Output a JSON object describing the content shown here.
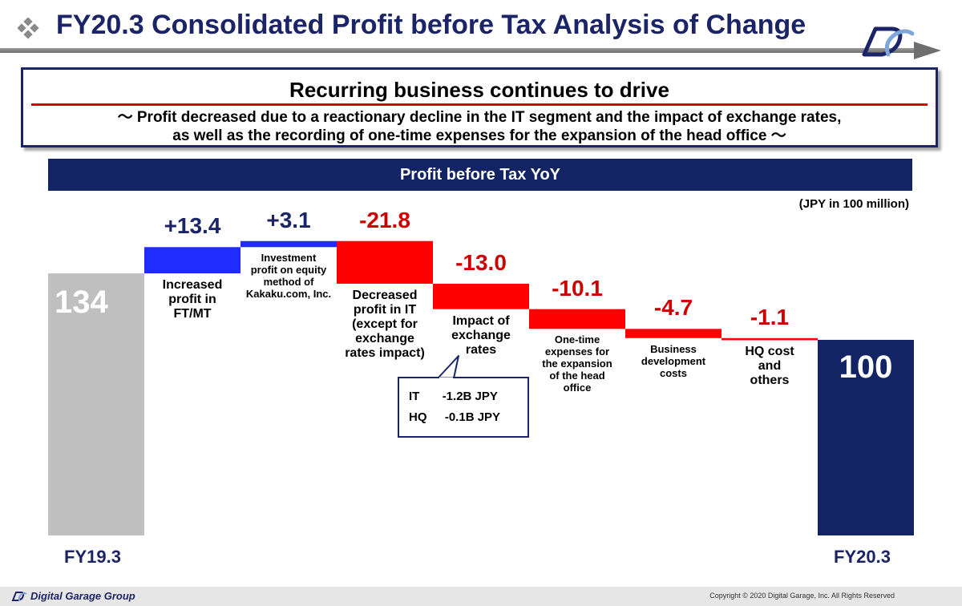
{
  "header": {
    "title": "FY20.3 Consolidated Profit before Tax Analysis of Change"
  },
  "message": {
    "headline": "Recurring business continues to drive",
    "sub_line1": "～ Profit decreased due to a reactionary decline in the IT segment and the impact of exchange rates,",
    "sub_line2": "as well as the recording of one-time expenses for the expansion of the head office ～"
  },
  "chart_data": {
    "type": "bar",
    "subtype": "waterfall",
    "title": "Profit before Tax YoY",
    "unit": "(JPY in 100 million)",
    "start": {
      "label": "FY19.3",
      "value": 134,
      "display": "134"
    },
    "end": {
      "label": "FY20.3",
      "value": 100,
      "display": "100"
    },
    "steps": [
      {
        "display": "+13.4",
        "value": 13.4,
        "label_lines": [
          "Increased",
          "profit in",
          "FT/MT"
        ]
      },
      {
        "display": "+3.1",
        "value": 3.1,
        "label_lines": [
          "Investment",
          "profit on equity",
          "method of",
          "Kakaku.com, Inc."
        ]
      },
      {
        "display": "-21.8",
        "value": -21.8,
        "label_lines": [
          "Decreased",
          "profit in IT",
          "(except for",
          "exchange",
          "rates impact)"
        ]
      },
      {
        "display": "-13.0",
        "value": -13.0,
        "label_lines": [
          "Impact of",
          "exchange",
          "rates"
        ]
      },
      {
        "display": "-10.1",
        "value": -10.1,
        "label_lines": [
          "One-time",
          "expenses for",
          "the expansion",
          "of the head",
          "office"
        ]
      },
      {
        "display": "-4.7",
        "value": -4.7,
        "label_lines": [
          "Business",
          "development",
          "costs"
        ]
      },
      {
        "display": "-1.1",
        "value": -1.1,
        "label_lines": [
          "HQ cost",
          "and",
          "others"
        ]
      }
    ],
    "callout": {
      "rows": [
        {
          "seg": "IT",
          "amount": "-1.2B JPY"
        },
        {
          "seg": "HQ",
          "amount": "-0.1B JPY"
        }
      ]
    },
    "colors": {
      "start_bar": "#bfbfbf",
      "end_bar": "#122463",
      "increase": "#1f2bff",
      "decrease": "#ff0000",
      "increase_text": "#1a2466",
      "decrease_text": "#cc0000"
    }
  },
  "footer": {
    "company": "Digital Garage Group",
    "copyright": "Copyright © 2020 Digital Garage, Inc. All Rights Reserved"
  }
}
